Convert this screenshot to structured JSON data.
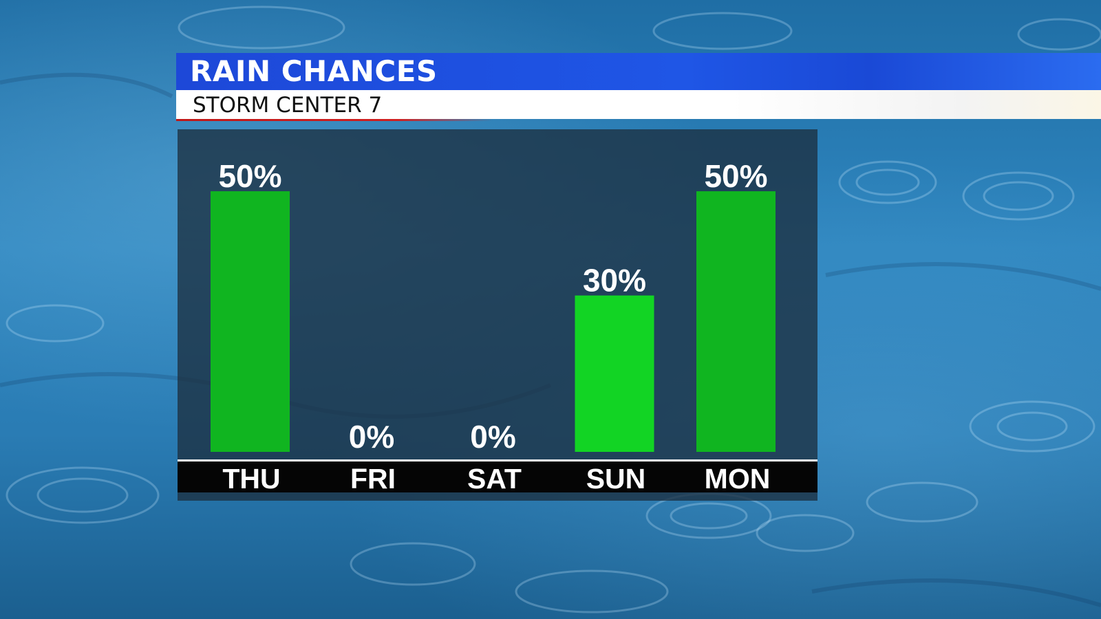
{
  "header": {
    "title": "RAIN CHANCES",
    "subtitle": "STORM CENTER 7"
  },
  "colors": {
    "bar": "#10b520",
    "bar_highlight": "#12d424",
    "title_bar": "#1f52e3",
    "axis_band": "#050505",
    "baseline": "#ffffff"
  },
  "chart_data": {
    "type": "bar",
    "categories": [
      "THU",
      "FRI",
      "SAT",
      "SUN",
      "MON"
    ],
    "values": [
      50,
      0,
      0,
      30,
      50
    ],
    "value_labels": [
      "50%",
      "0%",
      "0%",
      "30%",
      "50%"
    ],
    "ylim": [
      0,
      60
    ],
    "grid": false,
    "legend": "none"
  }
}
